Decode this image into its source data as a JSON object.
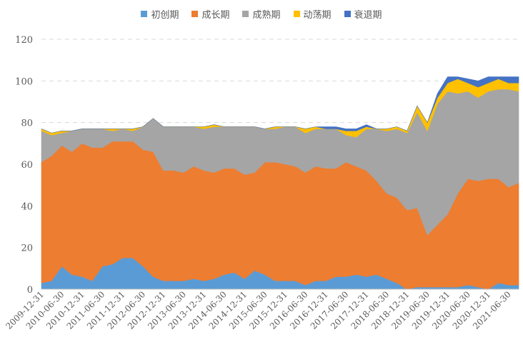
{
  "chart_data": {
    "type": "area",
    "stacked": true,
    "title": "",
    "xlabel": "",
    "ylabel": "",
    "ylim": [
      0,
      120
    ],
    "yticks": [
      0,
      20,
      40,
      60,
      80,
      100,
      120
    ],
    "grid": true,
    "legend_position": "top",
    "x": [
      "2009-12-31",
      "2010-03-31",
      "2010-06-30",
      "2010-09-30",
      "2010-12-31",
      "2011-03-31",
      "2011-06-30",
      "2011-09-30",
      "2011-12-31",
      "2012-03-31",
      "2012-06-30",
      "2012-09-30",
      "2012-12-31",
      "2013-03-31",
      "2013-06-30",
      "2013-09-30",
      "2013-12-31",
      "2014-03-31",
      "2014-06-30",
      "2014-09-30",
      "2014-12-31",
      "2015-03-31",
      "2015-06-30",
      "2015-09-30",
      "2015-12-31",
      "2016-03-31",
      "2016-06-30",
      "2016-09-30",
      "2016-12-31",
      "2017-03-31",
      "2017-06-30",
      "2017-09-30",
      "2017-12-31",
      "2018-03-31",
      "2018-06-30",
      "2018-09-30",
      "2018-12-31",
      "2019-03-31",
      "2019-06-30",
      "2019-09-30",
      "2019-12-31",
      "2020-03-31",
      "2020-06-30",
      "2020-09-30",
      "2020-12-31",
      "2021-03-31",
      "2021-06-30",
      "2021-09-30"
    ],
    "xtick_labels": [
      "2009-12-31",
      "2010-06-30",
      "2010-12-31",
      "2011-06-30",
      "2011-12-31",
      "2012-06-30",
      "2012-12-31",
      "2013-06-30",
      "2013-12-31",
      "2014-06-30",
      "2014-12-31",
      "2015-06-30",
      "2015-12-31",
      "2016-06-30",
      "2016-12-31",
      "2017-06-30",
      "2017-12-31",
      "2018-06-30",
      "2018-12-31",
      "2019-06-30",
      "2019-12-31",
      "2020-06-30",
      "2020-12-31",
      "2021-06-30"
    ],
    "series": [
      {
        "name": "初创期",
        "color": "#5B9BD5",
        "values": [
          3,
          4,
          11,
          7,
          6,
          4,
          11,
          12,
          15,
          15,
          11,
          6,
          4,
          4,
          4,
          5,
          4,
          5,
          7,
          8,
          5,
          9,
          7,
          4,
          4,
          4,
          2,
          4,
          4,
          6,
          6,
          7,
          6,
          7,
          5,
          3,
          0,
          1,
          1,
          1,
          1,
          1,
          2,
          1,
          0,
          3,
          2,
          2
        ]
      },
      {
        "name": "成长期",
        "color": "#ED7D31",
        "values": [
          58,
          60,
          58,
          59,
          64,
          64,
          57,
          59,
          56,
          56,
          56,
          60,
          53,
          53,
          52,
          54,
          53,
          51,
          51,
          50,
          50,
          47,
          54,
          57,
          56,
          55,
          54,
          55,
          54,
          52,
          55,
          52,
          51,
          45,
          41,
          41,
          38,
          38,
          25,
          30,
          35,
          45,
          51,
          51,
          53,
          50,
          47,
          49
        ]
      },
      {
        "name": "成熟期",
        "color": "#A5A5A5",
        "values": [
          15,
          10,
          6,
          10,
          7,
          9,
          9,
          5,
          6,
          5,
          11,
          16,
          21,
          21,
          22,
          19,
          20,
          22,
          20,
          20,
          23,
          22,
          16,
          16,
          18,
          19,
          19,
          18,
          19,
          19,
          13,
          14,
          20,
          25,
          30,
          33,
          37,
          46,
          50,
          58,
          59,
          48,
          42,
          40,
          42,
          43,
          47,
          44
        ]
      },
      {
        "name": "动荡期",
        "color": "#FFC000",
        "values": [
          1,
          1,
          1,
          0,
          0,
          0,
          0,
          1,
          0,
          1,
          0,
          0,
          0,
          0,
          0,
          0,
          1,
          1,
          0,
          0,
          0,
          0,
          0,
          1,
          0,
          0,
          2,
          1,
          0,
          0,
          2,
          3,
          1,
          0,
          1,
          1,
          1,
          3,
          4,
          3,
          4,
          7,
          4,
          5,
          4,
          5,
          3,
          4
        ]
      },
      {
        "name": "衰退期",
        "color": "#4472C4",
        "values": [
          0,
          0,
          0,
          0,
          0,
          0,
          0,
          0,
          0,
          0,
          0,
          0,
          0,
          0,
          0,
          0,
          0,
          0,
          0,
          0,
          0,
          0,
          0,
          0,
          0,
          0,
          0,
          0,
          1,
          1,
          1,
          1,
          1,
          0,
          0,
          0,
          0,
          0,
          0,
          2,
          3,
          1,
          2,
          3,
          3,
          1,
          3,
          3
        ]
      }
    ]
  }
}
